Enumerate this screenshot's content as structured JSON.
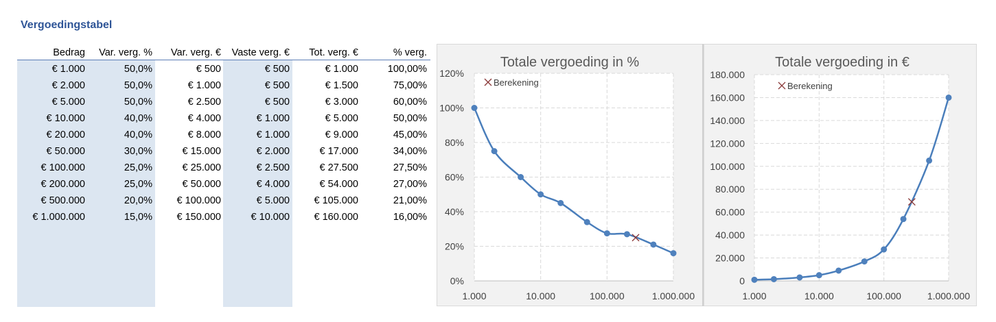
{
  "title": "Vergoedingstabel",
  "table": {
    "headers": [
      "Bedrag",
      "Var. verg. %",
      "Var. verg. €",
      "Vaste verg. €",
      "Tot. verg. €",
      "% verg."
    ],
    "rows": [
      [
        "€ 1.000",
        "50,0%",
        "€ 500",
        "€ 500",
        "€ 1.000",
        "100,00%"
      ],
      [
        "€ 2.000",
        "50,0%",
        "€ 1.000",
        "€ 500",
        "€ 1.500",
        "75,00%"
      ],
      [
        "€ 5.000",
        "50,0%",
        "€ 2.500",
        "€ 500",
        "€ 3.000",
        "60,00%"
      ],
      [
        "€ 10.000",
        "40,0%",
        "€ 4.000",
        "€ 1.000",
        "€ 5.000",
        "50,00%"
      ],
      [
        "€ 20.000",
        "40,0%",
        "€ 8.000",
        "€ 1.000",
        "€ 9.000",
        "45,00%"
      ],
      [
        "€ 50.000",
        "30,0%",
        "€ 15.000",
        "€ 2.000",
        "€ 17.000",
        "34,00%"
      ],
      [
        "€ 100.000",
        "25,0%",
        "€ 25.000",
        "€ 2.500",
        "€ 27.500",
        "27,50%"
      ],
      [
        "€ 200.000",
        "25,0%",
        "€ 50.000",
        "€ 4.000",
        "€ 54.000",
        "27,00%"
      ],
      [
        "€ 500.000",
        "20,0%",
        "€ 100.000",
        "€ 5.000",
        "€ 105.000",
        "21,00%"
      ],
      [
        "€ 1.000.000",
        "15,0%",
        "€ 150.000",
        "€ 10.000",
        "€ 160.000",
        "16,00%"
      ]
    ]
  },
  "colors": {
    "title": "#2F5597",
    "shade": "#DCE6F1",
    "line": "#4A7EBB",
    "marker": "#4F81BD",
    "calc_marker": "#8B3A3A",
    "chart_bg": "#F2F2F2",
    "plot_bg": "#FFFFFF",
    "grid": "#D9D9D9"
  },
  "chart_data": [
    {
      "type": "line",
      "title": "Totale vergoeding in %",
      "x_scale": "log",
      "x": [
        1000,
        2000,
        5000,
        10000,
        20000,
        50000,
        100000,
        200000,
        500000,
        1000000
      ],
      "xlim": [
        1000,
        1000000
      ],
      "x_ticks": [
        1000,
        10000,
        100000,
        1000000
      ],
      "x_tick_labels": [
        "1.000",
        "10.000",
        "100.000",
        "1.000.000"
      ],
      "ylim": [
        0,
        120
      ],
      "y_ticks": [
        0,
        20,
        40,
        60,
        80,
        100,
        120
      ],
      "y_tick_labels": [
        "0%",
        "20%",
        "40%",
        "60%",
        "80%",
        "100%",
        "120%"
      ],
      "series": [
        {
          "values": [
            100,
            75,
            60,
            50,
            45,
            34,
            27.5,
            27,
            21,
            16
          ]
        }
      ],
      "calc_point": {
        "name": "Berekening",
        "x": 270000,
        "y": 25
      },
      "grid": true,
      "legend_position": "top-left"
    },
    {
      "type": "line",
      "title": "Totale vergoeding in €",
      "x_scale": "log",
      "x": [
        1000,
        2000,
        5000,
        10000,
        20000,
        50000,
        100000,
        200000,
        500000,
        1000000
      ],
      "xlim": [
        1000,
        1000000
      ],
      "x_ticks": [
        1000,
        10000,
        100000,
        1000000
      ],
      "x_tick_labels": [
        "1.000",
        "10.000",
        "100.000",
        "1.000.000"
      ],
      "ylim": [
        0,
        180000
      ],
      "y_ticks": [
        0,
        20000,
        40000,
        60000,
        80000,
        100000,
        120000,
        140000,
        160000,
        180000
      ],
      "y_tick_labels": [
        "0",
        "20.000",
        "40.000",
        "60.000",
        "80.000",
        "100.000",
        "120.000",
        "140.000",
        "160.000",
        "180.000"
      ],
      "series": [
        {
          "values": [
            1000,
            1500,
            3000,
            5000,
            9000,
            17000,
            27500,
            54000,
            105000,
            160000
          ]
        }
      ],
      "calc_point": {
        "name": "Berekening",
        "x": 270000,
        "y": 69000
      },
      "grid": true,
      "legend_position": "top-left"
    }
  ]
}
